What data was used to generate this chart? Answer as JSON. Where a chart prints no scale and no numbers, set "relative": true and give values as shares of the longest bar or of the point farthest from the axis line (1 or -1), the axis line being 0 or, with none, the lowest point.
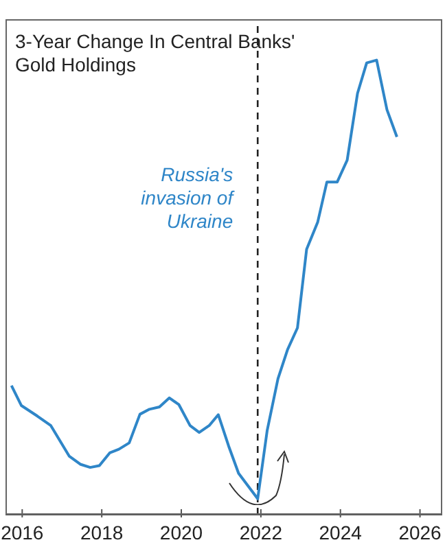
{
  "chart_data": {
    "type": "line",
    "title": "3-Year Change In Central Banks' Gold Holdings",
    "relative": true,
    "x": [
      2015.73,
      2015.98,
      2016.38,
      2016.72,
      2017.18,
      2017.46,
      2017.71,
      2017.94,
      2018.2,
      2018.43,
      2018.69,
      2018.96,
      2019.2,
      2019.45,
      2019.7,
      2019.94,
      2020.22,
      2020.45,
      2020.7,
      2020.93,
      2021.19,
      2021.44,
      2021.69,
      2021.92,
      2022.16,
      2022.43,
      2022.67,
      2022.92,
      2023.15,
      2023.43,
      2023.66,
      2023.92,
      2024.17,
      2024.43,
      2024.66,
      2024.91,
      2025.17,
      2025.42
    ],
    "series": [
      {
        "color": "#2f86c8",
        "values": [
          0.284,
          0.24,
          0.217,
          0.196,
          0.129,
          0.111,
          0.104,
          0.108,
          0.136,
          0.144,
          0.158,
          0.221,
          0.232,
          0.237,
          0.257,
          0.242,
          0.196,
          0.181,
          0.196,
          0.22,
          0.151,
          0.091,
          0.062,
          0.035,
          0.186,
          0.299,
          0.363,
          0.411,
          0.584,
          0.644,
          0.732,
          0.732,
          0.78,
          0.927,
          0.994,
          1.0,
          0.891,
          0.831
        ]
      }
    ],
    "xlim": [
      2015.58,
      2026.56
    ],
    "xticks": [
      2016,
      2018,
      2020,
      2022,
      2024,
      2026
    ],
    "ref_lines": [
      {
        "axis": "x",
        "value": 2021.92,
        "label": "Russia's invasion of Ukraine",
        "color": "#222222",
        "line_style": "dashed"
      }
    ],
    "marker": "none",
    "line_style": "solid"
  }
}
